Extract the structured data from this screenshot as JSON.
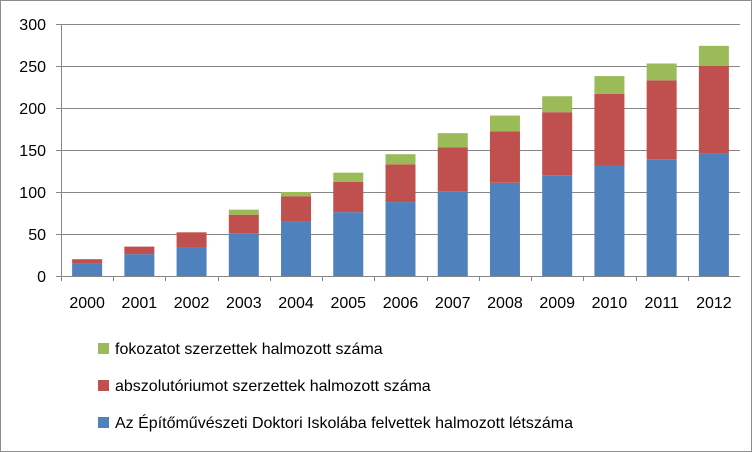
{
  "chart_data": {
    "type": "bar",
    "stacked": true,
    "categories": [
      "2000",
      "2001",
      "2002",
      "2003",
      "2004",
      "2005",
      "2006",
      "2007",
      "2008",
      "2009",
      "2010",
      "2011",
      "2012"
    ],
    "series": [
      {
        "name": "Az Építőművészeti Doktori Iskolába felvettek halmozott létszáma",
        "color": "#4f81bd",
        "values": [
          15,
          26,
          34,
          51,
          65,
          76,
          88,
          101,
          111,
          120,
          131,
          139,
          146
        ]
      },
      {
        "name": "abszolutóriumot szerzettek halmozott száma",
        "color": "#c0504d",
        "values": [
          5,
          9,
          18,
          22,
          30,
          36,
          45,
          52,
          61,
          75,
          86,
          94,
          104
        ]
      },
      {
        "name": "fokozatot szerzettek halmozott száma",
        "color": "#9bbb59",
        "values": [
          0,
          0,
          0,
          6,
          5,
          11,
          12,
          17,
          19,
          19,
          21,
          20,
          24
        ]
      }
    ],
    "ylim": [
      0,
      300
    ],
    "yticks": [
      0,
      50,
      100,
      150,
      200,
      250,
      300
    ],
    "grid": true,
    "legend_position": "bottom",
    "legend_order": [
      2,
      1,
      0
    ]
  }
}
